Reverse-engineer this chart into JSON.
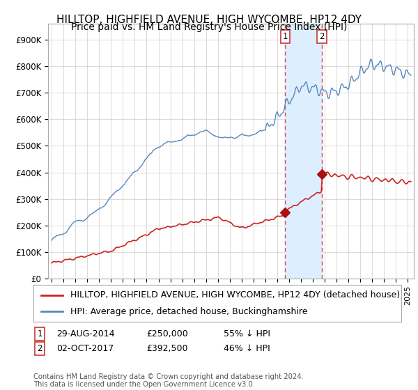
{
  "title": "HILLTOP, HIGHFIELD AVENUE, HIGH WYCOMBE, HP12 4DY",
  "subtitle": "Price paid vs. HM Land Registry's House Price Index (HPI)",
  "ylabel_ticks": [
    "£0",
    "£100K",
    "£200K",
    "£300K",
    "£400K",
    "£500K",
    "£600K",
    "£700K",
    "£800K",
    "£900K"
  ],
  "ytick_values": [
    0,
    100000,
    200000,
    300000,
    400000,
    500000,
    600000,
    700000,
    800000,
    900000
  ],
  "ylim": [
    0,
    960000
  ],
  "xlim_start": 1994.7,
  "xlim_end": 2025.5,
  "hpi_color": "#5588bb",
  "price_color": "#cc2222",
  "transaction1_x": 2014.66,
  "transaction1_y": 250000,
  "transaction2_x": 2017.75,
  "transaction2_y": 392500,
  "marker_color": "#aa1111",
  "vline_color": "#dd4444",
  "shade_color": "#ddeeff",
  "legend_label1": "HILLTOP, HIGHFIELD AVENUE, HIGH WYCOMBE, HP12 4DY (detached house)",
  "legend_label2": "HPI: Average price, detached house, Buckinghamshire",
  "note1_date": "29-AUG-2014",
  "note1_price": "£250,000",
  "note1_pct": "55% ↓ HPI",
  "note2_date": "02-OCT-2017",
  "note2_price": "£392,500",
  "note2_pct": "46% ↓ HPI",
  "footer": "Contains HM Land Registry data © Crown copyright and database right 2024.\nThis data is licensed under the Open Government Licence v3.0.",
  "bg_color": "#ffffff",
  "grid_color": "#cccccc",
  "title_fontsize": 11,
  "tick_fontsize": 8.5,
  "legend_fontsize": 9
}
